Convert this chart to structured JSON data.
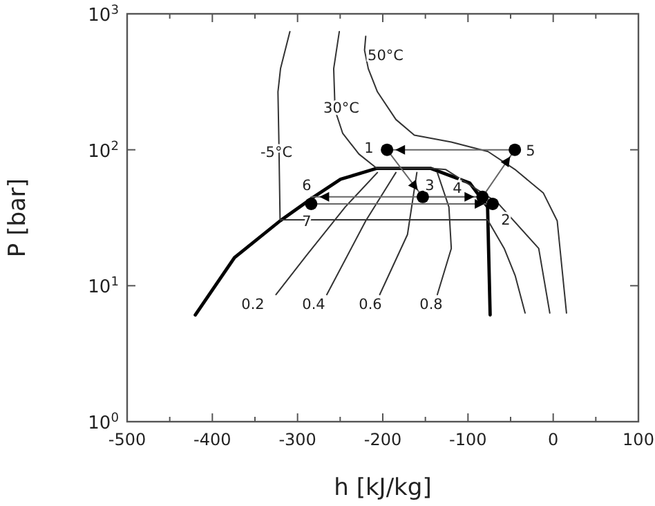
{
  "chart_data": {
    "type": "line",
    "xlabel": "h [kJ/kg]",
    "ylabel": "P [bar]",
    "log": "y",
    "xlim": [
      -500,
      100
    ],
    "ylim": [
      1,
      1000
    ],
    "xticks": [
      -500,
      {
        "value": -450,
        "label": null
      },
      -400,
      {
        "value": -350,
        "label": null
      },
      -300,
      {
        "value": -250,
        "label": null
      },
      -200,
      {
        "value": -150,
        "label": null
      },
      -100,
      {
        "value": -50,
        "label": null
      },
      0,
      {
        "value": 50,
        "label": null
      },
      100
    ],
    "yticks": [
      {
        "value": 1,
        "label": "10$^{0}$"
      },
      {
        "value": 10,
        "label": "10$^{1}$"
      },
      {
        "value": 100,
        "label": "10$^{2}$"
      },
      {
        "value": 1000,
        "label": "10$^{3}$"
      }
    ],
    "series": [
      {
        "color": "#000000",
        "x": [
          -420,
          -374,
          -320.5,
          -282,
          -249.5,
          -207,
          -144,
          -98,
          -77,
          -74
        ],
        "values": [
          6.1,
          16.1,
          30,
          44.5,
          60.7,
          73,
          73,
          57,
          38,
          6.1
        ]
      },
      {
        "color": "#333333",
        "x": [
          -309,
          -320,
          -323,
          -322,
          -320.5,
          -77,
          -57.5,
          -44.5,
          -33
        ],
        "values": [
          740,
          395,
          267,
          123,
          30.5,
          30.5,
          18.8,
          11.8,
          6.3
        ]
      },
      {
        "color": "#333333",
        "x": [
          -251,
          -257.6,
          -256,
          -247,
          -228,
          -207,
          -144,
          -126,
          -65.6,
          -17,
          -4
        ],
        "values": [
          740,
          395,
          196,
          132,
          93,
          73,
          73,
          71.5,
          41,
          18.8,
          6.3
        ]
      },
      {
        "color": "#333333",
        "x": [
          -220,
          -221.4,
          -217,
          -206.3,
          -184.6,
          -163,
          -119.6,
          -76.5,
          -44,
          -11.5,
          4.7,
          15.6
        ],
        "values": [
          683,
          540,
          395,
          267,
          167,
          128,
          114,
          97,
          71,
          48,
          30,
          6.3
        ]
      },
      {
        "color": "#333333",
        "x": [
          -206.3,
          -244,
          -289.6,
          -325.3
        ],
        "values": [
          68,
          38,
          16.7,
          8.6
        ]
      },
      {
        "color": "#333333",
        "x": [
          -184.6,
          -220,
          -265.7
        ],
        "values": [
          68,
          30,
          8.6
        ]
      },
      {
        "color": "#333333",
        "x": [
          -160,
          -171,
          -203.6
        ],
        "values": [
          68,
          23.8,
          8.6
        ]
      },
      {
        "color": "#333333",
        "x": [
          -136,
          -122.4,
          -119.6,
          -136
        ],
        "values": [
          68,
          38,
          18.8,
          8.6
        ]
      },
      {
        "color": "#666666",
        "x": [
          -45,
          -195
        ],
        "values": [
          100,
          100
        ]
      },
      {
        "color": "#666666",
        "x": [
          -195,
          -153
        ],
        "values": [
          100,
          45
        ]
      },
      {
        "color": "#666666",
        "x": [
          -153,
          -83
        ],
        "values": [
          45,
          45
        ]
      },
      {
        "color": "#666666",
        "x": [
          -83,
          -45
        ],
        "values": [
          45,
          100
        ]
      },
      {
        "color": "#666666",
        "x": [
          -83,
          -284
        ],
        "values": [
          45,
          45
        ]
      },
      {
        "color": "#666666",
        "x": [
          -284,
          -71
        ],
        "values": [
          40,
          40
        ]
      },
      {
        "type": "scatter",
        "marker": "circle",
        "color": "#000000",
        "x": [
          -195,
          -45,
          -153,
          -83,
          -71,
          -284
        ],
        "values": [
          100,
          100,
          45,
          45,
          40,
          40
        ]
      }
    ],
    "annotations": [
      "-5°C",
      "30°C",
      "50°C",
      "0.2",
      "0.4",
      "0.6",
      "0.8",
      "1",
      "2",
      "3",
      "4",
      "5",
      "6",
      "7"
    ]
  }
}
